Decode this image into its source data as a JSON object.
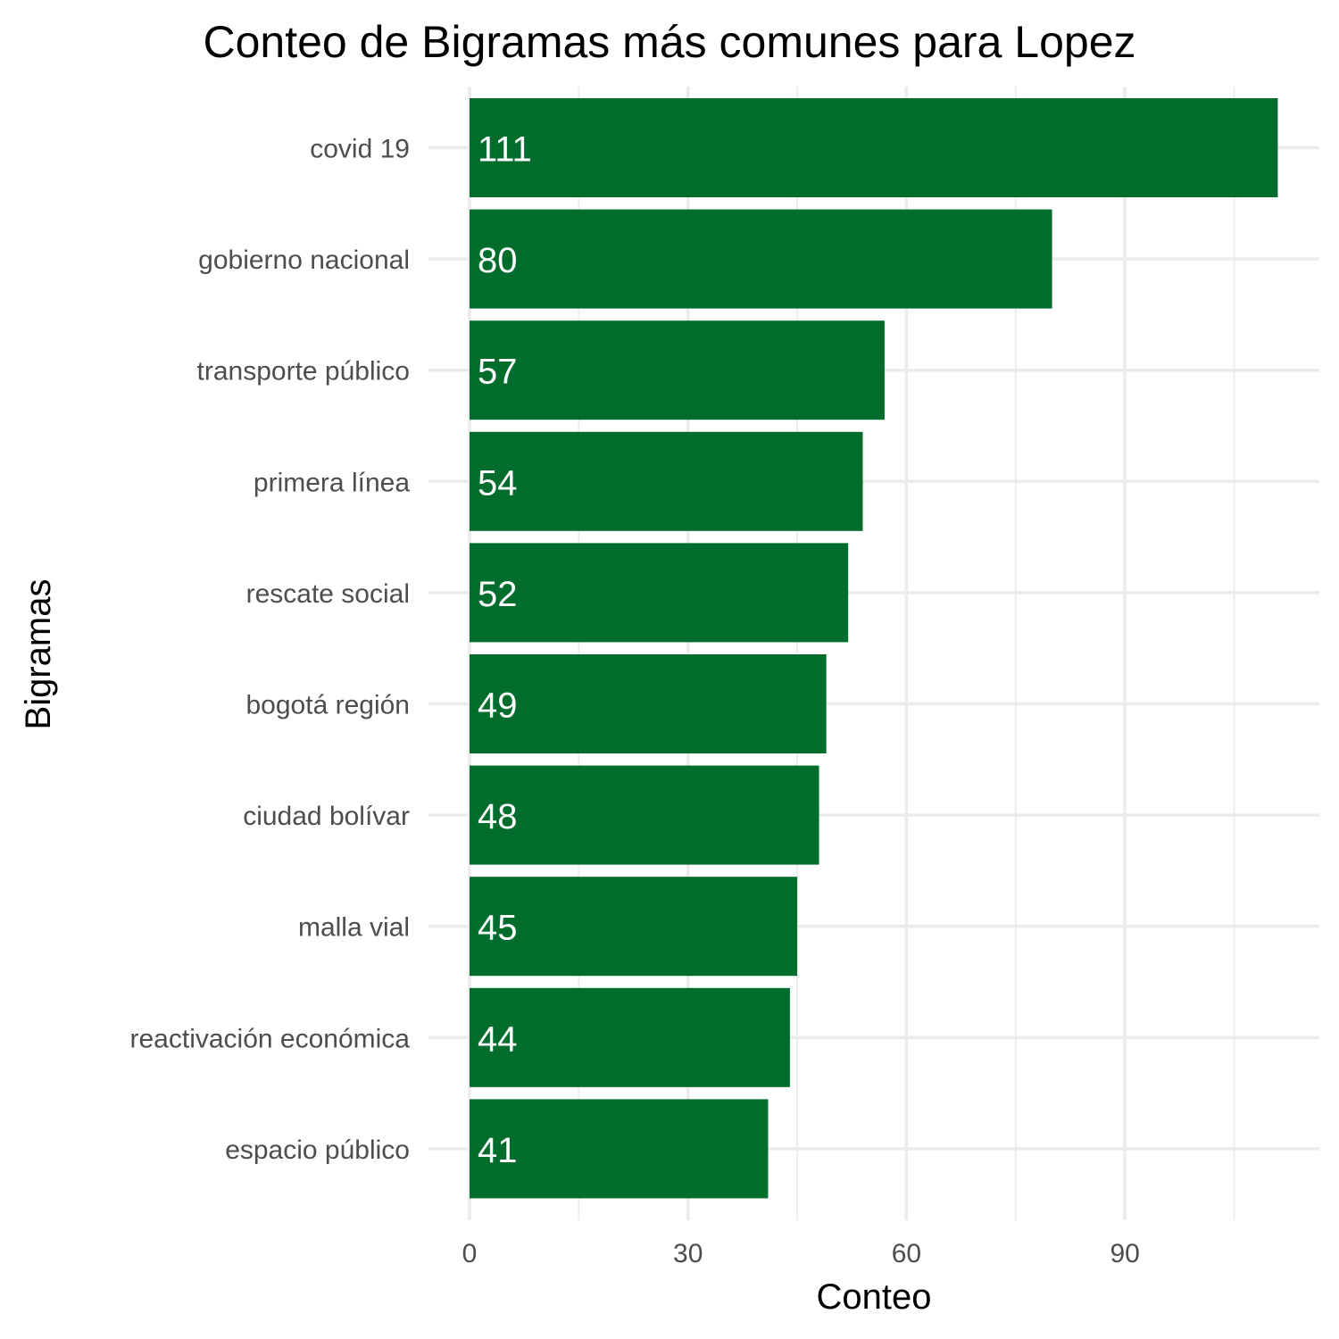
{
  "chart_data": {
    "type": "bar",
    "orientation": "horizontal",
    "title": "Conteo de Bigramas más comunes para Lopez",
    "xlabel": "Conteo",
    "ylabel": "Bigramas",
    "categories": [
      "covid 19",
      "gobierno nacional",
      "transporte público",
      "primera línea",
      "rescate social",
      "bogotá región",
      "ciudad bolívar",
      "malla vial",
      "reactivación económica",
      "espacio público"
    ],
    "values": [
      111,
      80,
      57,
      54,
      52,
      49,
      48,
      45,
      44,
      41
    ],
    "data_labels": [
      "111",
      "80",
      "57",
      "54",
      "52",
      "49",
      "48",
      "45",
      "44",
      "41"
    ],
    "x_ticks": [
      "0",
      "30",
      "60",
      "90"
    ],
    "x_tick_values": [
      0,
      30,
      60,
      90
    ],
    "x_minor_tick_values": [
      15,
      45,
      75,
      105
    ],
    "xlim": [
      0,
      116.55
    ],
    "bar_color": "#006d2c",
    "grid": true,
    "legend": "none"
  }
}
